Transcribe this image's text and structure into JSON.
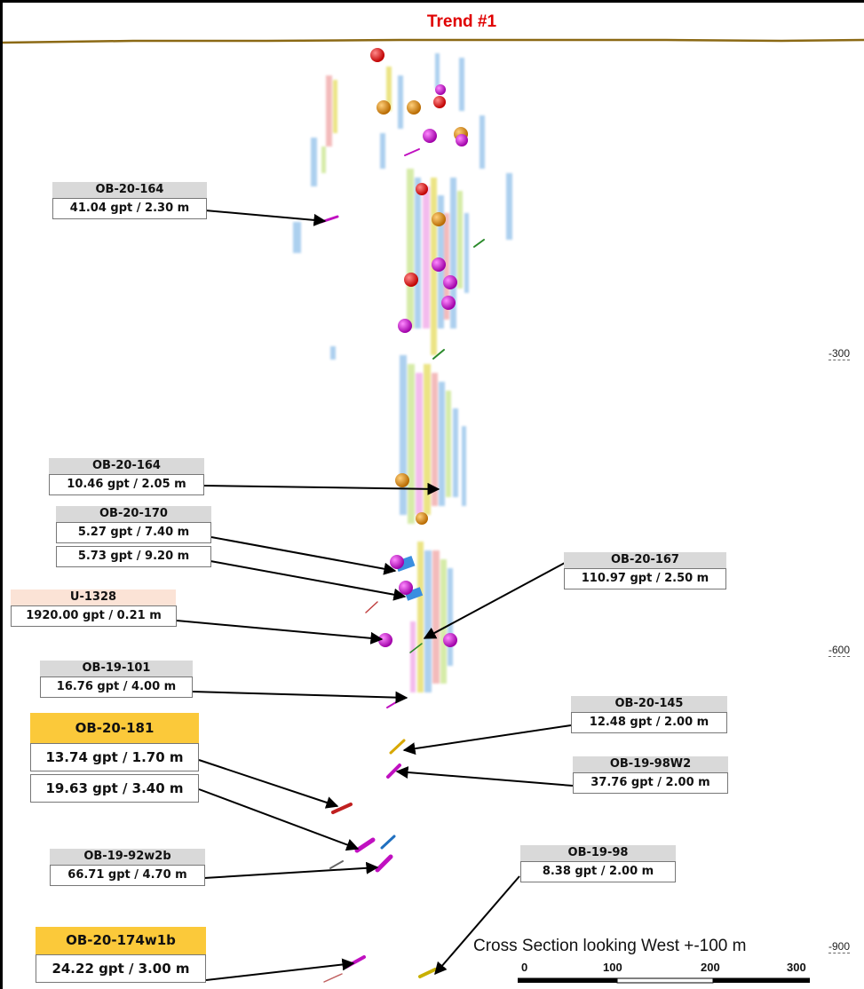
{
  "title": "Trend #1",
  "elevations": [
    "-300",
    "-600",
    "-900"
  ],
  "scale": {
    "title": "Cross Section looking West +-100 m",
    "ticks": [
      "0",
      "100",
      "200",
      "300"
    ]
  },
  "callouts": [
    {
      "hole": "OB-20-164",
      "values": [
        "41.04 gpt / 2.30 m"
      ]
    },
    {
      "hole": "OB-20-164",
      "values": [
        "10.46 gpt / 2.05 m"
      ]
    },
    {
      "hole": "OB-20-170",
      "values": [
        "5.27 gpt / 7.40 m",
        "5.73 gpt / 9.20 m"
      ]
    },
    {
      "hole": "U-1328",
      "values": [
        "1920.00 gpt / 0.21 m"
      ]
    },
    {
      "hole": "OB-20-167",
      "values": [
        "110.97 gpt / 2.50 m"
      ]
    },
    {
      "hole": "OB-19-101",
      "values": [
        "16.76 gpt / 4.00 m"
      ]
    },
    {
      "hole": "OB-20-181",
      "values": [
        "13.74 gpt / 1.70 m",
        "19.63 gpt / 3.40 m"
      ]
    },
    {
      "hole": "OB-20-145",
      "values": [
        "12.48 gpt / 2.00 m"
      ]
    },
    {
      "hole": "OB-19-98W2",
      "values": [
        "37.76 gpt / 2.00 m"
      ]
    },
    {
      "hole": "OB-19-92w2b",
      "values": [
        "66.71 gpt / 4.70 m"
      ]
    },
    {
      "hole": "OB-19-98",
      "values": [
        "8.38 gpt / 2.00 m"
      ]
    },
    {
      "hole": "OB-20-174w1b",
      "values": [
        "24.22 gpt / 3.00 m"
      ]
    }
  ],
  "colors": {
    "title": "#e00000",
    "surface": "#8b6914",
    "arrow": "#000000",
    "sphere_red": "#e01010",
    "sphere_orange": "#e08a10",
    "sphere_magenta": "#d010d0"
  }
}
